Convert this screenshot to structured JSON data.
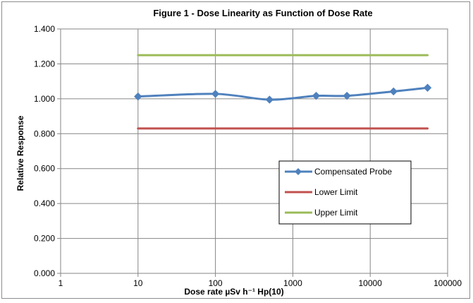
{
  "chart_data": {
    "type": "line",
    "title": "Figure 1 - Dose Linearity as Function of Dose Rate",
    "xlabel": "Dose rate  µSv h⁻¹ Hp(10)",
    "ylabel": "Relative Response",
    "x_scale": "log",
    "xlim": [
      1,
      100000
    ],
    "ylim": [
      0,
      1.4
    ],
    "x_ticks": [
      "1",
      "10",
      "100",
      "1000",
      "10000",
      "100000"
    ],
    "y_ticks": [
      "0.000",
      "0.200",
      "0.400",
      "0.600",
      "0.800",
      "1.000",
      "1.200",
      "1.400"
    ],
    "grid": true,
    "legend_position": "lower-right",
    "series": [
      {
        "name": "Compensated Probe",
        "color": "#4f81bd",
        "marker": "diamond",
        "x": [
          10,
          100,
          500,
          2000,
          5000,
          20000,
          55000
        ],
        "y": [
          1.013,
          1.028,
          0.995,
          1.017,
          1.017,
          1.042,
          1.063
        ]
      },
      {
        "name": "Lower Limit",
        "color": "#c0504d",
        "marker": "none",
        "x": [
          10,
          55000
        ],
        "y": [
          0.83,
          0.83
        ]
      },
      {
        "name": "Upper Limit",
        "color": "#9bbb59",
        "marker": "none",
        "x": [
          10,
          55000
        ],
        "y": [
          1.25,
          1.25
        ]
      }
    ]
  }
}
